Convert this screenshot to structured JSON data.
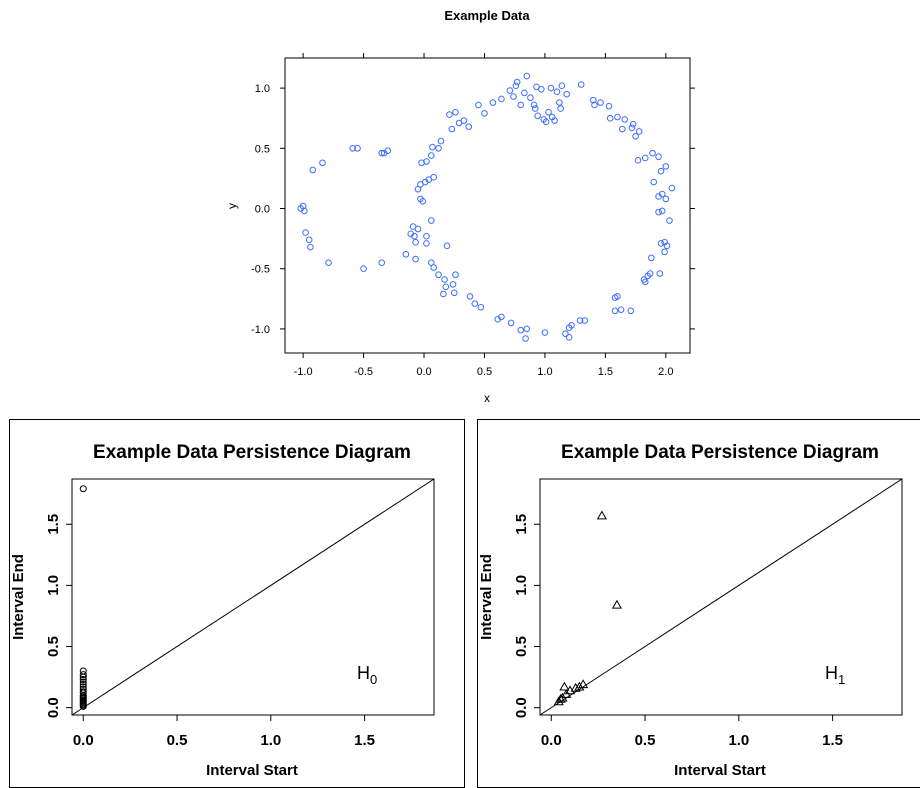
{
  "chart_data": [
    {
      "type": "scatter",
      "title": "Example Data",
      "xlabel": "x",
      "ylabel": "y",
      "xlim": [
        -1.15,
        2.2
      ],
      "ylim": [
        -1.2,
        1.25
      ],
      "x_ticks": [
        -1.0,
        -0.5,
        0.0,
        0.5,
        1.0,
        1.5,
        2.0
      ],
      "x_tick_labels": [
        "-1.0",
        "-0.5",
        "0.0",
        "0.5",
        "1.0",
        "1.5",
        "2.0"
      ],
      "y_ticks": [
        -1.0,
        -0.5,
        0.0,
        0.5,
        1.0
      ],
      "y_tick_labels": [
        "-1.0",
        "-0.5",
        "0.0",
        "0.5",
        "1.0"
      ],
      "grid": false,
      "marker_color": "#3b6fff",
      "points": [
        [
          0.85,
          1.1
        ],
        [
          0.77,
          1.05
        ],
        [
          0.76,
          1.02
        ],
        [
          0.93,
          1.01
        ],
        [
          1.05,
          1.0
        ],
        [
          1.14,
          1.02
        ],
        [
          1.3,
          1.03
        ],
        [
          0.71,
          0.98
        ],
        [
          0.83,
          0.96
        ],
        [
          0.97,
          0.99
        ],
        [
          1.1,
          0.97
        ],
        [
          1.18,
          0.95
        ],
        [
          0.74,
          0.93
        ],
        [
          0.88,
          0.92
        ],
        [
          0.91,
          0.86
        ],
        [
          1.12,
          0.88
        ],
        [
          0.8,
          0.86
        ],
        [
          0.92,
          0.83
        ],
        [
          1.03,
          0.8
        ],
        [
          1.13,
          0.83
        ],
        [
          0.94,
          0.77
        ],
        [
          1.06,
          0.76
        ],
        [
          0.99,
          0.74
        ],
        [
          1.08,
          0.73
        ],
        [
          1.01,
          0.72
        ],
        [
          0.64,
          0.91
        ],
        [
          0.57,
          0.88
        ],
        [
          0.45,
          0.86
        ],
        [
          0.26,
          0.8
        ],
        [
          0.21,
          0.78
        ],
        [
          0.33,
          0.73
        ],
        [
          0.29,
          0.71
        ],
        [
          0.5,
          0.79
        ],
        [
          0.37,
          0.68
        ],
        [
          0.23,
          0.66
        ],
        [
          0.14,
          0.56
        ],
        [
          0.07,
          0.51
        ],
        [
          0.12,
          0.5
        ],
        [
          0.06,
          0.44
        ],
        [
          0.02,
          0.39
        ],
        [
          -0.02,
          0.38
        ],
        [
          0.08,
          0.26
        ],
        [
          0.04,
          0.24
        ],
        [
          0.01,
          0.22
        ],
        [
          -0.03,
          0.2
        ],
        [
          -0.05,
          0.16
        ],
        [
          -0.03,
          0.08
        ],
        [
          -0.01,
          0.06
        ],
        [
          0.06,
          -0.1
        ],
        [
          -0.09,
          -0.15
        ],
        [
          -0.05,
          -0.17
        ],
        [
          -0.11,
          -0.21
        ],
        [
          -0.08,
          -0.23
        ],
        [
          0.02,
          -0.23
        ],
        [
          -0.07,
          -0.28
        ],
        [
          0.02,
          -0.29
        ],
        [
          0.19,
          -0.31
        ],
        [
          -0.15,
          -0.38
        ],
        [
          -0.07,
          -0.42
        ],
        [
          0.06,
          -0.45
        ],
        [
          0.08,
          -0.49
        ],
        [
          0.12,
          -0.55
        ],
        [
          0.17,
          -0.59
        ],
        [
          0.26,
          -0.55
        ],
        [
          0.24,
          -0.63
        ],
        [
          0.18,
          -0.65
        ],
        [
          0.16,
          -0.71
        ],
        [
          0.25,
          -0.7
        ],
        [
          0.38,
          -0.73
        ],
        [
          0.42,
          -0.79
        ],
        [
          0.47,
          -0.82
        ],
        [
          0.64,
          -0.9
        ],
        [
          0.61,
          -0.92
        ],
        [
          0.72,
          -0.95
        ],
        [
          0.8,
          -1.01
        ],
        [
          0.85,
          -1.0
        ],
        [
          0.84,
          -1.08
        ],
        [
          1.0,
          -1.03
        ],
        [
          1.17,
          -1.04
        ],
        [
          1.2,
          -0.99
        ],
        [
          1.22,
          -0.97
        ],
        [
          1.29,
          -0.93
        ],
        [
          1.33,
          -0.93
        ],
        [
          1.2,
          -1.07
        ],
        [
          1.58,
          -0.85
        ],
        [
          1.63,
          -0.84
        ],
        [
          1.71,
          -0.85
        ],
        [
          1.58,
          -0.74
        ],
        [
          1.6,
          -0.73
        ],
        [
          1.83,
          -0.61
        ],
        [
          1.85,
          -0.56
        ],
        [
          1.87,
          -0.54
        ],
        [
          1.95,
          -0.54
        ],
        [
          1.82,
          -0.59
        ],
        [
          1.88,
          -0.41
        ],
        [
          1.99,
          -0.36
        ],
        [
          2.01,
          -0.31
        ],
        [
          1.96,
          -0.29
        ],
        [
          1.99,
          -0.28
        ],
        [
          2.03,
          -0.1
        ],
        [
          1.94,
          -0.03
        ],
        [
          1.97,
          -0.02
        ],
        [
          2.0,
          0.08
        ],
        [
          1.94,
          0.1
        ],
        [
          1.97,
          0.12
        ],
        [
          1.9,
          0.22
        ],
        [
          2.05,
          0.17
        ],
        [
          1.96,
          0.31
        ],
        [
          2.0,
          0.35
        ],
        [
          1.94,
          0.43
        ],
        [
          1.89,
          0.46
        ],
        [
          1.83,
          0.42
        ],
        [
          1.77,
          0.4
        ],
        [
          1.75,
          0.6
        ],
        [
          1.78,
          0.64
        ],
        [
          1.73,
          0.7
        ],
        [
          1.72,
          0.67
        ],
        [
          1.66,
          0.74
        ],
        [
          1.6,
          0.76
        ],
        [
          1.64,
          0.66
        ],
        [
          1.54,
          0.75
        ],
        [
          1.41,
          0.86
        ],
        [
          1.4,
          0.9
        ],
        [
          1.46,
          0.88
        ],
        [
          1.53,
          0.85
        ],
        [
          -1.0,
          0.02
        ],
        [
          -1.02,
          0.0
        ],
        [
          -0.99,
          -0.02
        ],
        [
          -0.98,
          -0.2
        ],
        [
          -0.95,
          -0.26
        ],
        [
          -0.94,
          -0.32
        ],
        [
          -0.92,
          0.32
        ],
        [
          -0.84,
          0.38
        ],
        [
          -0.79,
          -0.45
        ],
        [
          -0.59,
          0.5
        ],
        [
          -0.55,
          0.5
        ],
        [
          -0.5,
          -0.5
        ],
        [
          -0.35,
          0.46
        ],
        [
          -0.33,
          0.46
        ],
        [
          -0.3,
          0.48
        ],
        [
          -0.35,
          -0.45
        ]
      ]
    },
    {
      "type": "scatter",
      "title": "Example Data Persistence Diagram",
      "xlabel": "Interval Start",
      "ylabel": "Interval End",
      "xlim": [
        -0.06,
        1.87
      ],
      "ylim": [
        -0.06,
        1.87
      ],
      "x_ticks": [
        0.0,
        0.5,
        1.0,
        1.5
      ],
      "x_tick_labels": [
        "0.0",
        "0.5",
        "1.0",
        "1.5"
      ],
      "y_ticks": [
        0.0,
        0.5,
        1.0,
        1.5
      ],
      "y_tick_labels": [
        "0.0",
        "0.5",
        "1.0",
        "1.5"
      ],
      "diagonal": true,
      "marker": "circle",
      "annotation_main": "H",
      "annotation_sub": "0",
      "points": [
        [
          0.0,
          1.79
        ],
        [
          0.0,
          0.3
        ],
        [
          0.0,
          0.27
        ],
        [
          0.0,
          0.25
        ],
        [
          0.0,
          0.23
        ],
        [
          0.0,
          0.21
        ],
        [
          0.0,
          0.19
        ],
        [
          0.0,
          0.17
        ],
        [
          0.0,
          0.15
        ],
        [
          0.0,
          0.13
        ],
        [
          0.0,
          0.12
        ],
        [
          0.0,
          0.1
        ],
        [
          0.0,
          0.09
        ],
        [
          0.0,
          0.08
        ],
        [
          0.0,
          0.07
        ],
        [
          0.0,
          0.06
        ],
        [
          0.0,
          0.05
        ],
        [
          0.0,
          0.04
        ],
        [
          0.0,
          0.03
        ],
        [
          0.0,
          0.02
        ],
        [
          0.0,
          0.01
        ]
      ]
    },
    {
      "type": "scatter",
      "title": "Example Data Persistence Diagram",
      "xlabel": "Interval Start",
      "ylabel": "Interval End",
      "xlim": [
        -0.06,
        1.87
      ],
      "ylim": [
        -0.06,
        1.87
      ],
      "x_ticks": [
        0.0,
        0.5,
        1.0,
        1.5
      ],
      "x_tick_labels": [
        "0.0",
        "0.5",
        "1.0",
        "1.5"
      ],
      "y_ticks": [
        0.0,
        0.5,
        1.0,
        1.5
      ],
      "y_tick_labels": [
        "0.0",
        "0.5",
        "1.0",
        "1.5"
      ],
      "diagonal": true,
      "marker": "triangle",
      "annotation_main": "H",
      "annotation_sub": "1",
      "points": [
        [
          0.27,
          1.57
        ],
        [
          0.35,
          0.84
        ],
        [
          0.07,
          0.17
        ],
        [
          0.1,
          0.14
        ],
        [
          0.13,
          0.16
        ],
        [
          0.15,
          0.17
        ],
        [
          0.17,
          0.19
        ],
        [
          0.05,
          0.07
        ],
        [
          0.06,
          0.08
        ],
        [
          0.04,
          0.05
        ],
        [
          0.08,
          0.11
        ]
      ]
    }
  ]
}
